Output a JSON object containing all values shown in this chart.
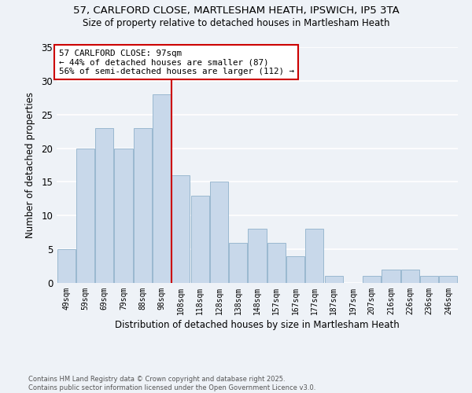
{
  "title": "57, CARLFORD CLOSE, MARTLESHAM HEATH, IPSWICH, IP5 3TA",
  "subtitle": "Size of property relative to detached houses in Martlesham Heath",
  "xlabel": "Distribution of detached houses by size in Martlesham Heath",
  "ylabel": "Number of detached properties",
  "bar_color": "#c8d8ea",
  "bar_edgecolor": "#9ab8d0",
  "background_color": "#eef2f7",
  "grid_color": "#ffffff",
  "categories": [
    "49sqm",
    "59sqm",
    "69sqm",
    "79sqm",
    "88sqm",
    "98sqm",
    "108sqm",
    "118sqm",
    "128sqm",
    "138sqm",
    "148sqm",
    "157sqm",
    "167sqm",
    "177sqm",
    "187sqm",
    "197sqm",
    "207sqm",
    "216sqm",
    "226sqm",
    "236sqm",
    "246sqm"
  ],
  "values": [
    5,
    20,
    23,
    20,
    23,
    28,
    16,
    13,
    15,
    6,
    8,
    6,
    4,
    8,
    1,
    0,
    1,
    2,
    2,
    1,
    1
  ],
  "ylim": [
    0,
    35
  ],
  "yticks": [
    0,
    5,
    10,
    15,
    20,
    25,
    30,
    35
  ],
  "vline_x_index": 5,
  "vline_color": "#cc0000",
  "annotation_text": "57 CARLFORD CLOSE: 97sqm\n← 44% of detached houses are smaller (87)\n56% of semi-detached houses are larger (112) →",
  "annotation_box_color": "#ffffff",
  "annotation_box_edgecolor": "#cc0000",
  "footnote": "Contains HM Land Registry data © Crown copyright and database right 2025.\nContains public sector information licensed under the Open Government Licence v3.0.",
  "figsize": [
    6.0,
    5.0
  ],
  "dpi": 100
}
